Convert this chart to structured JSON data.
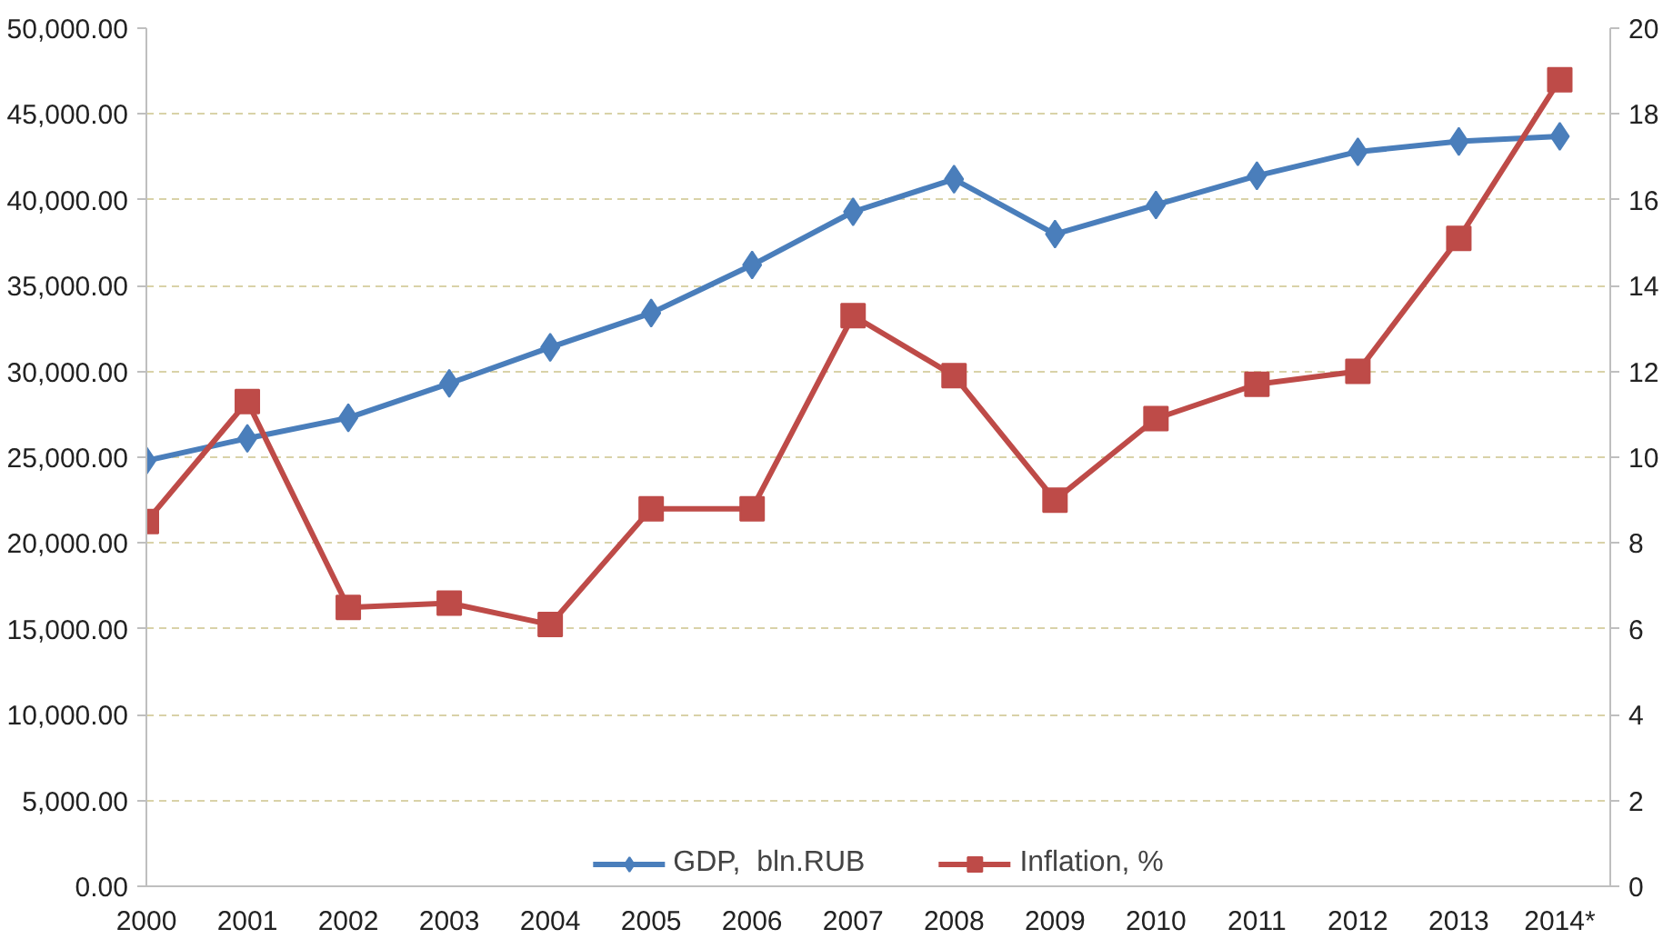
{
  "chart_data": {
    "type": "line",
    "categories": [
      "2000",
      "2001",
      "2002",
      "2003",
      "2004",
      "2005",
      "2006",
      "2007",
      "2008",
      "2009",
      "2010",
      "2011",
      "2012",
      "2013",
      "2014*"
    ],
    "series": [
      {
        "name": "GDP,  bln.RUB",
        "color": "#4a7ebb",
        "marker": "diamond",
        "values": [
          24800,
          26100,
          27300,
          29300,
          31400,
          33400,
          36200,
          39300,
          41200,
          38000,
          39700,
          41400,
          42800,
          43400,
          43700
        ]
      },
      {
        "name": "Inflation, %",
        "color": "#be4b48",
        "marker": "square",
        "axis": "y2",
        "values": [
          8.5,
          11.3,
          6.5,
          6.6,
          6.1,
          8.8,
          8.8,
          13.3,
          11.9,
          9.0,
          10.9,
          11.7,
          12.0,
          15.1,
          18.8
        ]
      }
    ],
    "ylim": [
      0,
      50000
    ],
    "yticks": [
      {
        "value": 0,
        "label": "0.00"
      },
      {
        "value": 5000,
        "label": "5,000.00"
      },
      {
        "value": 10000,
        "label": "10,000.00"
      },
      {
        "value": 15000,
        "label": "15,000.00"
      },
      {
        "value": 20000,
        "label": "20,000.00"
      },
      {
        "value": 25000,
        "label": "25,000.00"
      },
      {
        "value": 30000,
        "label": "30,000.00"
      },
      {
        "value": 35000,
        "label": "35,000.00"
      },
      {
        "value": 40000,
        "label": "40,000.00"
      },
      {
        "value": 45000,
        "label": "45,000.00"
      },
      {
        "value": 50000,
        "label": "50,000.00"
      }
    ],
    "y2lim": [
      0,
      20
    ],
    "y2ticks": [
      0,
      2,
      4,
      6,
      8,
      10,
      12,
      14,
      16,
      18,
      20
    ],
    "grid": "y",
    "legend": "bottom",
    "line_style": "solid"
  }
}
